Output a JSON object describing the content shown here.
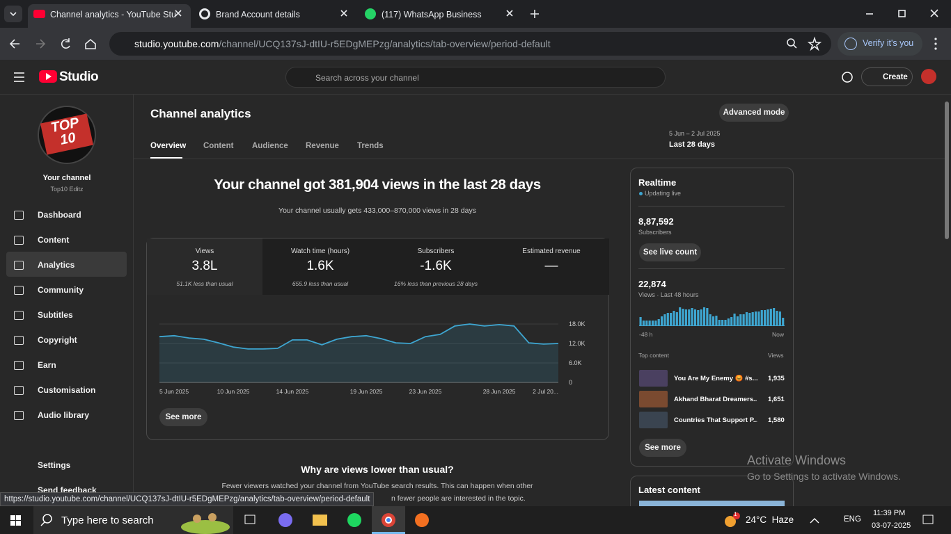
{
  "browser": {
    "tabs": [
      {
        "title": "Channel analytics - YouTube Stu"
      },
      {
        "title": "Brand Account details"
      },
      {
        "title": "(117) WhatsApp Business"
      }
    ],
    "url_host": "studio.youtube.com",
    "url_path": "/channel/UCQ137sJ-dtIU-r5EDgMEPzg/analytics/tab-overview/period-default",
    "verify": "Verify it's you"
  },
  "header": {
    "logo": "Studio",
    "search_placeholder": "Search across your channel",
    "create": "Create"
  },
  "sidebar": {
    "avatar_line1": "TOP",
    "avatar_line2": "10",
    "channel_title": "Your channel",
    "channel_name": "Top10 Editz",
    "nav": [
      "Dashboard",
      "Content",
      "Analytics",
      "Community",
      "Subtitles",
      "Copyright",
      "Earn",
      "Customisation",
      "Audio library"
    ],
    "settings": "Settings",
    "feedback": "Send feedback"
  },
  "page": {
    "title": "Channel analytics",
    "advanced": "Advanced mode",
    "tabs": [
      "Overview",
      "Content",
      "Audience",
      "Revenue",
      "Trends"
    ],
    "period_range": "5 Jun – 2 Jul 2025",
    "period": "Last 28 days",
    "headline": "Your channel got 381,904 views in the last 28 days",
    "subhead": "Your channel usually gets 433,000–870,000 views in 28 days",
    "metrics": [
      {
        "label": "Views",
        "value": "3.8L",
        "note": "51.1K less than usual"
      },
      {
        "label": "Watch time (hours)",
        "value": "1.6K",
        "note": "655.9 less than usual"
      },
      {
        "label": "Subscribers",
        "value": "-1.6K",
        "note": "16% less than previous 28 days"
      },
      {
        "label": "Estimated revenue",
        "value": "—"
      }
    ],
    "see_more": "See more",
    "why_title": "Why are views lower than usual?",
    "why_text": "Fewer viewers watched your channel from YouTube search results. This can happen when other",
    "why_text2": "n fewer people are interested in the topic."
  },
  "chart_data": {
    "type": "line",
    "categories": [
      "5 Jun 2025",
      null,
      null,
      null,
      null,
      "10 Jun 2025",
      null,
      null,
      null,
      "14 Jun 2025",
      null,
      null,
      null,
      null,
      "19 Jun 2025",
      null,
      null,
      null,
      "23 Jun 2025",
      null,
      null,
      null,
      null,
      "28 Jun 2025",
      null,
      null,
      null,
      "2 Jul 20..."
    ],
    "values": [
      14100,
      14400,
      13700,
      13300,
      12200,
      10900,
      10300,
      10300,
      10500,
      13100,
      13100,
      11600,
      13300,
      14100,
      14400,
      13500,
      12200,
      12000,
      14100,
      14800,
      17400,
      18000,
      17400,
      17800,
      17400,
      12200,
      11800,
      12000
    ],
    "color": "#3ea6d1",
    "ylim": [
      0,
      18000
    ],
    "yticks": [
      0,
      {
        "value": 6000,
        "label": "6.0K"
      },
      {
        "value": 12000,
        "label": "12.0K"
      },
      {
        "value": 18000,
        "label": "18.0K"
      }
    ],
    "grid": true
  },
  "realtime": {
    "title": "Realtime",
    "status": "Updating live",
    "subscribers": "8,87,592",
    "subscribers_label": "Subscribers",
    "see_live": "See live count",
    "views": "22,874",
    "views_label": "Views · Last 48 hours",
    "bars": [
      360,
      210,
      210,
      210,
      210,
      210,
      270,
      390,
      480,
      540,
      540,
      630,
      570,
      780,
      720,
      690,
      690,
      750,
      690,
      660,
      690,
      780,
      750,
      480,
      390,
      420,
      240,
      240,
      240,
      300,
      360,
      510,
      390,
      480,
      480,
      570,
      540,
      570,
      600,
      600,
      660,
      660,
      690,
      720,
      750,
      630,
      600,
      330
    ],
    "axis_start": "-48 h",
    "axis_end": "Now",
    "top_content_label": "Top content",
    "views_col": "Views",
    "top": [
      {
        "title": "You Are My Enemy 😡 #s...",
        "views": "1,935"
      },
      {
        "title": "Akhand Bharat Dreamers...",
        "views": "1,651"
      },
      {
        "title": "Countries That Support P...",
        "views": "1,580"
      }
    ],
    "see_more": "See more",
    "latest": "Latest content"
  },
  "status_url": "https://studio.youtube.com/channel/UCQ137sJ-dtIU-r5EDgMEPzg/analytics/tab-overview/period-default",
  "watermark": {
    "line1": "Activate Windows",
    "line2": "Go to Settings to activate Windows."
  },
  "taskbar": {
    "search": "Type here to search",
    "badge": "1",
    "weather": "24°C  Haze",
    "lang": "ENG",
    "time": "11:39 PM",
    "date": "03-07-2025"
  }
}
